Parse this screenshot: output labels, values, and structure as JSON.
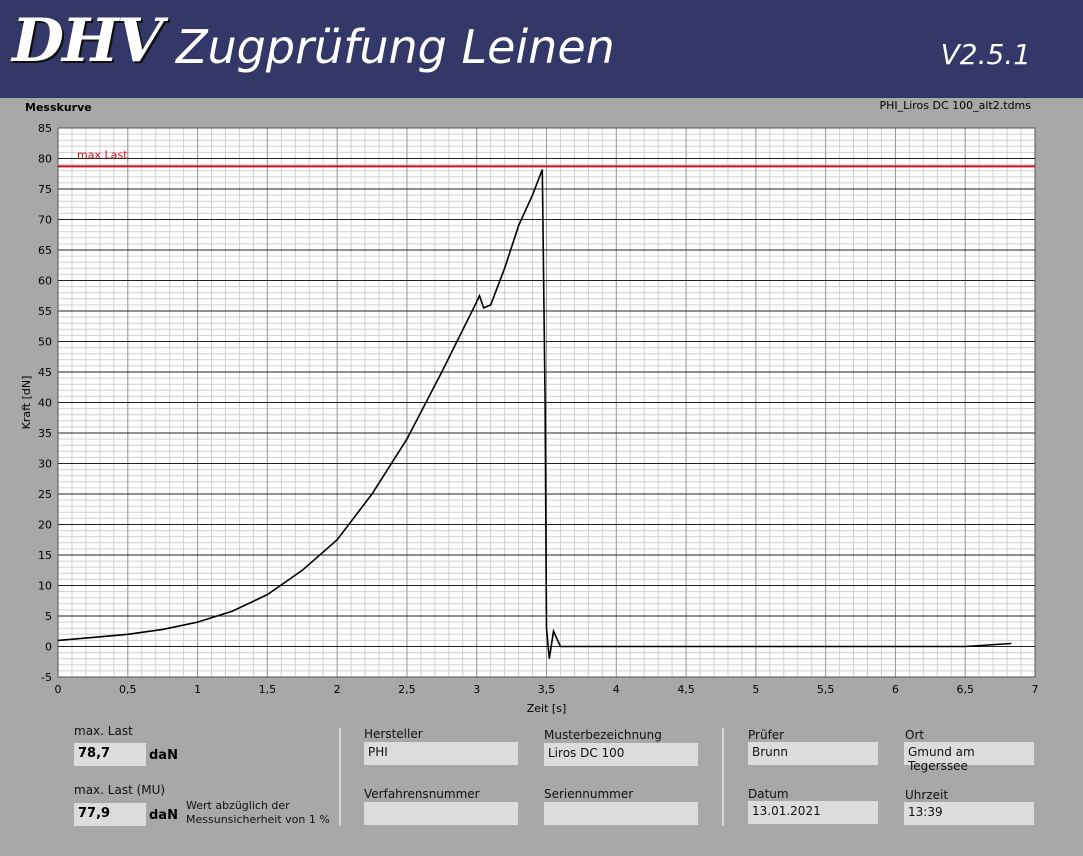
{
  "header": {
    "logo": "DHV",
    "title": "Zugprüfung Leinen",
    "version": "V2.5.1"
  },
  "chart_label": "Messkurve",
  "file_name": "PHI_Liros DC 100_alt2.tdms",
  "chart_data": {
    "type": "line",
    "xlabel": "Zeit [s]",
    "ylabel": "Kraft [dN]",
    "xlim": [
      0,
      7
    ],
    "ylim": [
      -5,
      85
    ],
    "xticks": [
      "0",
      "0,5",
      "1",
      "1,5",
      "2",
      "2,5",
      "3",
      "3,5",
      "4",
      "4,5",
      "5",
      "5,5",
      "6",
      "6,5",
      "7"
    ],
    "yticks": [
      "-5",
      "0",
      "5",
      "10",
      "15",
      "20",
      "25",
      "30",
      "35",
      "40",
      "45",
      "50",
      "55",
      "60",
      "65",
      "70",
      "75",
      "80",
      "85"
    ],
    "grid": true,
    "colors": {
      "curve": "#000000",
      "max_line": "#c8141e"
    },
    "max_line": {
      "label": "max Last",
      "value": 78.7
    },
    "series": [
      {
        "x": [
          0,
          0.25,
          0.5,
          0.75,
          1.0,
          1.25,
          1.5,
          1.75,
          2.0,
          2.25,
          2.5,
          2.75,
          3.0,
          3.02,
          3.05,
          3.1,
          3.2,
          3.3,
          3.4,
          3.45,
          3.47,
          3.49,
          3.5,
          3.52,
          3.55,
          3.6,
          4.0,
          4.5,
          5.0,
          5.5,
          6.0,
          6.5,
          6.83
        ],
        "y": [
          1,
          1.5,
          2,
          2.8,
          4,
          5.8,
          8.5,
          12.5,
          17.5,
          25,
          34,
          45,
          56.5,
          57.5,
          55.5,
          56,
          62,
          69,
          74,
          77,
          78.2,
          40,
          3,
          -2,
          2.5,
          0,
          0,
          0,
          0,
          0,
          0,
          0,
          0.5
        ]
      }
    ]
  },
  "result": {
    "max_last_label": "max. Last",
    "max_last_value": "78,7",
    "max_last_unit": "daN",
    "max_last_mu_label": "max. Last (MU)",
    "max_last_mu_value": "77,9",
    "max_last_mu_unit": "daN",
    "note_line1": "Wert abzüglich der",
    "note_line2": "Messunsicherheit von 1 %"
  },
  "fields": {
    "hersteller_label": "Hersteller",
    "hersteller": "PHI",
    "muster_label": "Musterbezeichnung",
    "muster": "Liros DC 100",
    "verfahren_label": "Verfahrensnummer",
    "verfahren": "",
    "serien_label": "Seriennummer",
    "serien": "",
    "pruefer_label": "Prüfer",
    "pruefer": "Brunn",
    "ort_label": "Ort",
    "ort": "Gmund am Tegerssee",
    "datum_label": "Datum",
    "datum": "13.01.2021",
    "uhrzeit_label": "Uhrzeit",
    "uhrzeit": "13:39"
  }
}
